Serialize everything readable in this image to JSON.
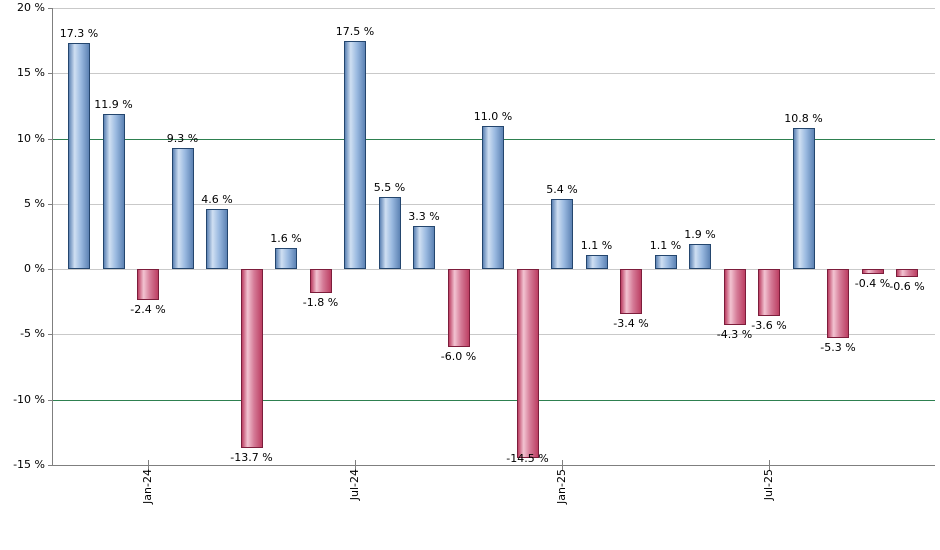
{
  "chart_data": {
    "type": "bar",
    "title": "",
    "xlabel": "",
    "ylabel": "",
    "values": [
      17.3,
      11.9,
      -2.4,
      9.3,
      4.6,
      -13.7,
      1.6,
      -1.8,
      17.5,
      5.5,
      3.3,
      -6.0,
      11.0,
      -14.5,
      5.4,
      1.1,
      -3.4,
      1.1,
      1.9,
      -4.3,
      -3.6,
      10.8,
      -5.3,
      -0.4,
      -0.6
    ],
    "bar_labels": [
      "17.3 %",
      "11.9 %",
      "-2.4 %",
      "9.3 %",
      "4.6 %",
      "-13.7 %",
      "1.6 %",
      "-1.8 %",
      "17.5 %",
      "5.5 %",
      "3.3 %",
      "-6.0 %",
      "11.0 %",
      "-14.5 %",
      "5.4 %",
      "1.1 %",
      "-3.4 %",
      "1.1 %",
      "1.9 %",
      "-4.3 %",
      "-3.6 %",
      "10.8 %",
      "-5.3 %",
      "-0.4 %",
      "-0.6 %"
    ],
    "x_ticks": [
      {
        "index": 2,
        "label": "Jan-24"
      },
      {
        "index": 8,
        "label": "Jul-24"
      },
      {
        "index": 14,
        "label": "Jan-25"
      },
      {
        "index": 20,
        "label": "Jul-25"
      }
    ],
    "y_ticks": [
      {
        "value": 20,
        "label": "20 %"
      },
      {
        "value": 15,
        "label": "15 %"
      },
      {
        "value": 10,
        "label": "10 %"
      },
      {
        "value": 5,
        "label": "5 %"
      },
      {
        "value": 0,
        "label": "0 %"
      },
      {
        "value": -5,
        "label": "-5 %"
      },
      {
        "value": -10,
        "label": "-10 %"
      },
      {
        "value": -15,
        "label": "-15 %"
      }
    ],
    "ylim": [
      -15,
      20
    ],
    "threshold_lines": [
      10,
      -10
    ],
    "grid": true,
    "legend": "none",
    "colors": {
      "positive_bar": "#8fb2dc",
      "positive_bar_border": "#24466e",
      "positive_gradient": [
        "#5d83b4",
        "#cfdff2",
        "#9ab9e0",
        "#5d83b4"
      ],
      "negative_bar": "#d06080",
      "negative_bar_border": "#7c1d3b",
      "negative_gradient": [
        "#bc3f63",
        "#f2c3d1",
        "#d57b97",
        "#bc3f63"
      ],
      "threshold_line": "#2e8050",
      "gridline": "#c9c9c9",
      "axis": "#7f7f7f",
      "label_text": "#000000",
      "background": "#ffffff"
    }
  }
}
